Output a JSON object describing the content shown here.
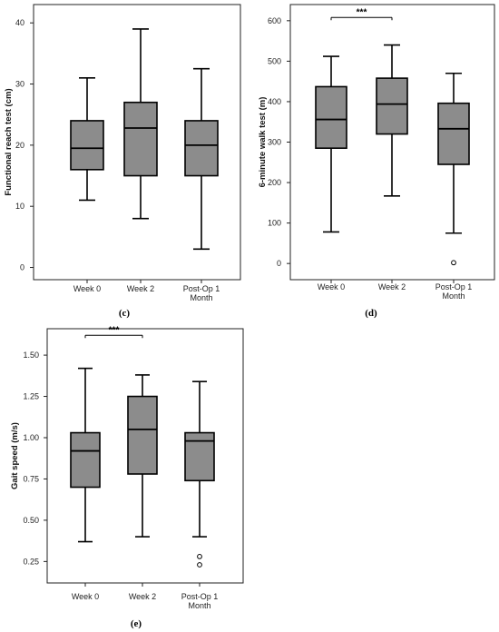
{
  "box_fill": "#8c8c8c",
  "line_color": "#000000",
  "chart_data": [
    {
      "type": "box",
      "panel_label": "(c)",
      "ylabel": "Functional reach test (cm)",
      "categories": [
        "Week 0",
        "Week 2",
        "Post-Op 1\nMonth"
      ],
      "ylim": [
        -2,
        43
      ],
      "yticks": [
        0,
        10,
        20,
        30,
        40
      ],
      "ytick_labels": [
        "0",
        "10",
        "20",
        "30",
        "40"
      ],
      "boxes": [
        {
          "whisker_low": 11,
          "q1": 16,
          "median": 19.5,
          "q3": 24,
          "whisker_high": 31,
          "outliers": []
        },
        {
          "whisker_low": 8,
          "q1": 15,
          "median": 22.8,
          "q3": 27,
          "whisker_high": 39,
          "outliers": []
        },
        {
          "whisker_low": 3,
          "q1": 15,
          "median": 20,
          "q3": 24,
          "whisker_high": 32.5,
          "outliers": []
        }
      ],
      "significance": null
    },
    {
      "type": "box",
      "panel_label": "(d)",
      "ylabel": "6-minute walk test (m)",
      "categories": [
        "Week 0",
        "Week 2",
        "Post-Op 1\nMonth"
      ],
      "ylim": [
        -40,
        640
      ],
      "yticks": [
        0,
        100,
        200,
        300,
        400,
        500,
        600
      ],
      "ytick_labels": [
        "0",
        "100",
        "200",
        "300",
        "400",
        "500",
        "600"
      ],
      "boxes": [
        {
          "whisker_low": 78,
          "q1": 285,
          "median": 356,
          "q3": 437,
          "whisker_high": 512,
          "outliers": []
        },
        {
          "whisker_low": 167,
          "q1": 320,
          "median": 394,
          "q3": 458,
          "whisker_high": 540,
          "outliers": []
        },
        {
          "whisker_low": 75,
          "q1": 245,
          "median": 333,
          "q3": 396,
          "whisker_high": 470,
          "outliers": [
            2
          ]
        }
      ],
      "significance": {
        "from": 0,
        "to": 1,
        "y": 608,
        "label": "***"
      }
    },
    {
      "type": "box",
      "panel_label": "(e)",
      "ylabel": "Gait speed (m/s)",
      "categories": [
        "Week 0",
        "Week 2",
        "Post-Op 1\nMonth"
      ],
      "ylim": [
        0.12,
        1.66
      ],
      "yticks": [
        0.25,
        0.5,
        0.75,
        1.0,
        1.25,
        1.5
      ],
      "ytick_labels": [
        "0.25",
        "0.50",
        "0.75",
        "1.00",
        "1.25",
        "1.50"
      ],
      "boxes": [
        {
          "whisker_low": 0.37,
          "q1": 0.7,
          "median": 0.92,
          "q3": 1.03,
          "whisker_high": 1.42,
          "outliers": []
        },
        {
          "whisker_low": 0.4,
          "q1": 0.78,
          "median": 1.05,
          "q3": 1.25,
          "whisker_high": 1.38,
          "outliers": []
        },
        {
          "whisker_low": 0.4,
          "q1": 0.74,
          "median": 0.98,
          "q3": 1.03,
          "whisker_high": 1.34,
          "outliers": [
            0.28,
            0.23
          ]
        }
      ],
      "significance": {
        "from": 0,
        "to": 1,
        "y": 1.62,
        "label": "***"
      }
    }
  ]
}
